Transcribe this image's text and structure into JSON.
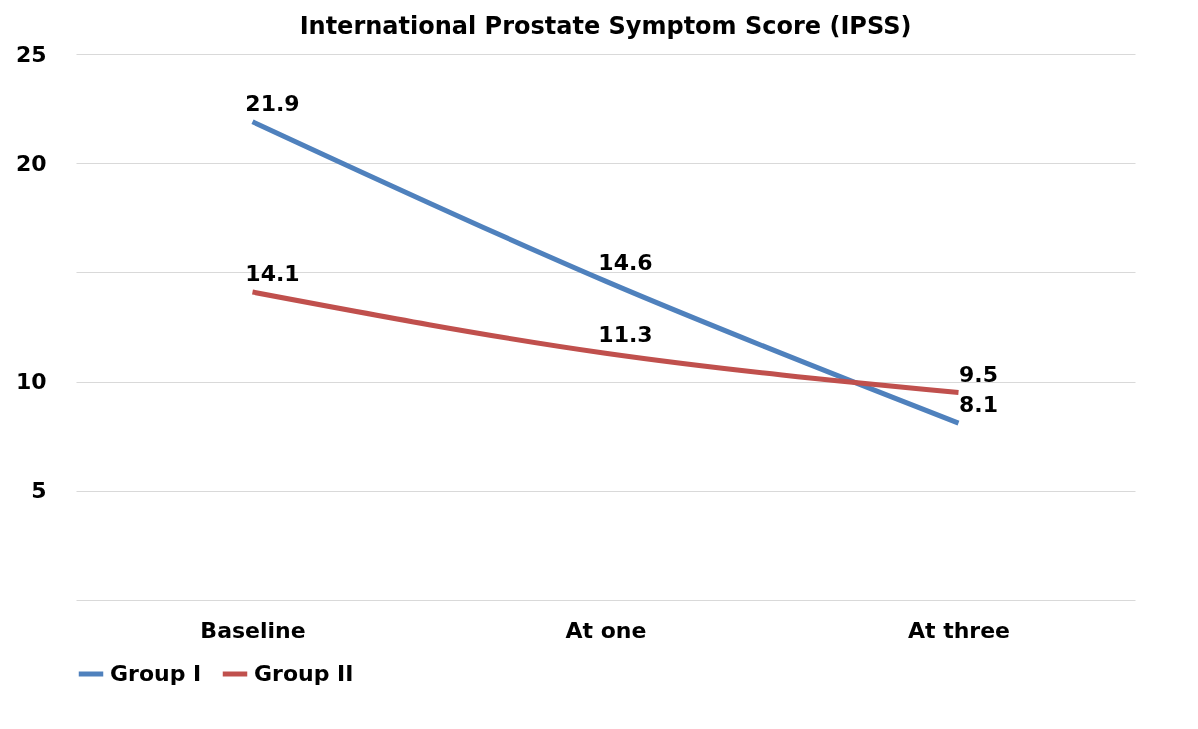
{
  "chart_data": {
    "type": "line",
    "title": "International  Prostate  Symptom  Score  (IPSS)",
    "categories": [
      "Baseline",
      "At one",
      "At three"
    ],
    "series": [
      {
        "name": "Group I",
        "color": "#4f81bd",
        "values": [
          21.9,
          14.6,
          8.1
        ]
      },
      {
        "name": "Group II",
        "color": "#c0504d",
        "values": [
          14.1,
          11.3,
          9.5
        ]
      }
    ],
    "ylim": [
      0,
      25
    ],
    "yticks": [
      {
        "value": 0,
        "label": null
      },
      5,
      10,
      {
        "value": 15,
        "label": null
      },
      20,
      25
    ],
    "grid": "y",
    "legend": "bottom",
    "data_labels": true,
    "marker": "none",
    "line_style": "solid"
  }
}
